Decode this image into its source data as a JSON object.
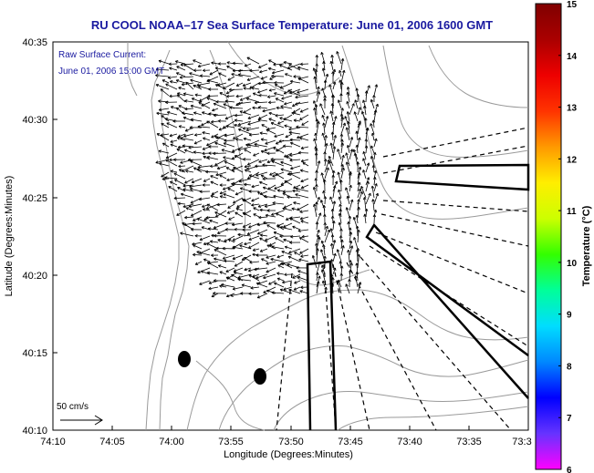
{
  "title": "RU COOL  NOAA–17  Sea Surface Temperature:  June 01, 2006 1600 GMT",
  "annotation": {
    "line1": "Raw Surface Current:",
    "line2": "June 01, 2006 15:00 GMT"
  },
  "scale_label": "50 cm/s",
  "x_axis": {
    "label": "Longitude (Degrees:Minutes)",
    "ticks": [
      "74:10",
      "74:05",
      "74:00",
      "73:55",
      "73:50",
      "73:45",
      "73:40",
      "73:35",
      "73:3"
    ]
  },
  "y_axis": {
    "label": "Latitude (Degrees:Minutes)",
    "ticks": [
      "40:35",
      "40:30",
      "40:25",
      "40:20",
      "40:15",
      "40:10"
    ]
  },
  "colorbar": {
    "label": "Temperature (°C)",
    "ticks": [
      "15",
      "14",
      "13",
      "12",
      "11",
      "10",
      "9",
      "8",
      "7",
      "6"
    ],
    "min": 6,
    "max": 15,
    "stops": [
      "#ff00ff",
      "#6633ff",
      "#0000ff",
      "#0088ff",
      "#00ddff",
      "#00ff99",
      "#33ff00",
      "#ccff00",
      "#ffee00",
      "#ff9900",
      "#ff3300",
      "#ee0000",
      "#aa0000",
      "#800000"
    ]
  },
  "colors": {
    "title": "#1a1aa0",
    "annotation": "#1a1aa0",
    "coast": "#888888",
    "arrows": "#000000"
  }
}
